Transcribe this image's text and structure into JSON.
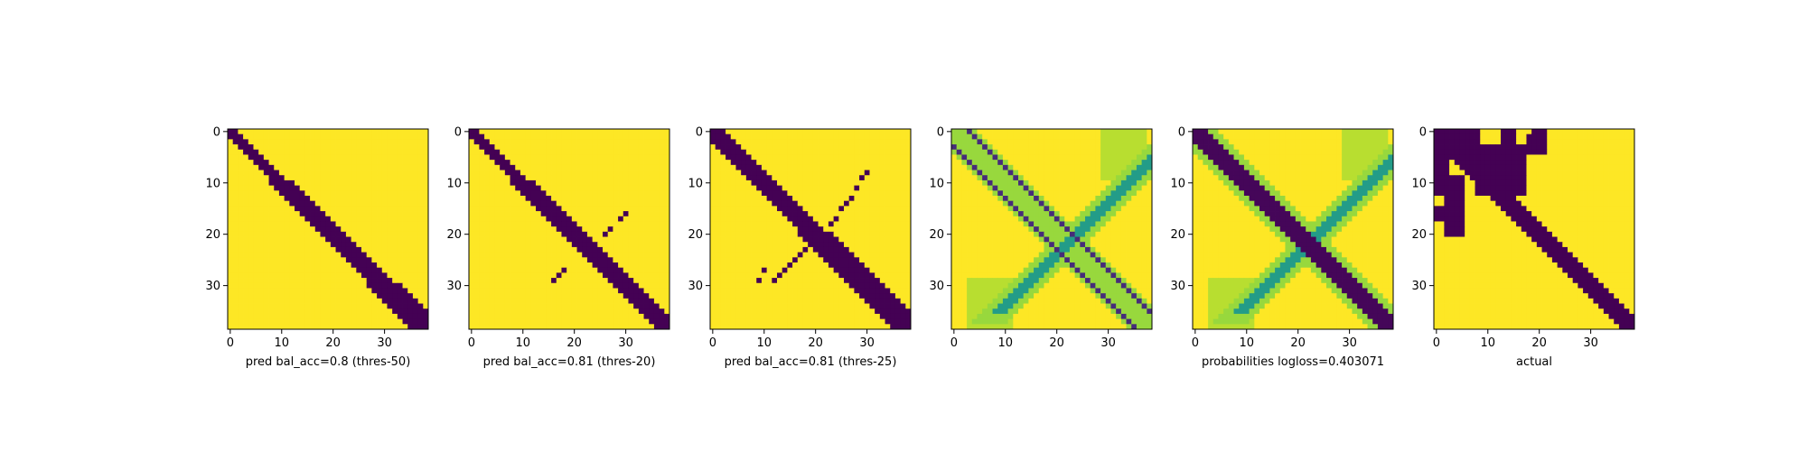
{
  "chart_data": [
    {
      "type": "heatmap",
      "title": "",
      "xlabel": "pred bal_acc=0.8 (thres-50)",
      "ylabel": "",
      "grid_size": 39,
      "xticks": [
        0,
        10,
        20,
        30
      ],
      "yticks": [
        0,
        10,
        20,
        30
      ],
      "colormap": "viridis-binary",
      "band_halfwidth": [
        1,
        2,
        2,
        3
      ],
      "off_diagonal_points": []
    },
    {
      "type": "heatmap",
      "title": "",
      "xlabel": "pred bal_acc=0.81 (thres-20)",
      "ylabel": "",
      "grid_size": 39,
      "xticks": [
        0,
        10,
        20,
        30
      ],
      "yticks": [
        0,
        10,
        20,
        30
      ],
      "colormap": "viridis-binary",
      "band_halfwidth": [
        1,
        2,
        2,
        2
      ],
      "off_diagonal_points": [
        [
          30,
          16
        ],
        [
          29,
          17
        ],
        [
          27,
          19
        ],
        [
          26,
          20
        ],
        [
          18,
          27
        ],
        [
          17,
          28
        ],
        [
          16,
          29
        ]
      ]
    },
    {
      "type": "heatmap",
      "title": "",
      "xlabel": "pred bal_acc=0.81 (thres-25)",
      "ylabel": "",
      "grid_size": 39,
      "xticks": [
        0,
        10,
        20,
        30
      ],
      "yticks": [
        0,
        10,
        20,
        30
      ],
      "colormap": "viridis-binary",
      "band_halfwidth": [
        2,
        2,
        3,
        3
      ],
      "off_diagonal_points": [
        [
          29,
          9
        ],
        [
          30,
          8
        ],
        [
          28,
          11
        ],
        [
          27,
          13
        ],
        [
          26,
          14
        ],
        [
          25,
          15
        ],
        [
          24,
          17
        ],
        [
          23,
          18
        ],
        [
          18,
          23
        ],
        [
          17,
          24
        ],
        [
          16,
          25
        ],
        [
          15,
          26
        ],
        [
          14,
          27
        ],
        [
          13,
          28
        ],
        [
          12,
          29
        ],
        [
          10,
          27
        ],
        [
          9,
          29
        ]
      ]
    },
    {
      "type": "heatmap",
      "title": "",
      "xlabel": "",
      "ylabel": "",
      "grid_size": 39,
      "xticks": [
        0,
        10,
        20,
        30
      ],
      "yticks": [
        0,
        10,
        20,
        30
      ],
      "colormap": "viridis",
      "diagonal_offsets": [
        -3,
        3
      ],
      "antidiagonal_strength": 0.45
    },
    {
      "type": "heatmap",
      "title": "",
      "xlabel": "probabilities logloss=0.403071",
      "ylabel": "",
      "grid_size": 39,
      "xticks": [
        0,
        10,
        20,
        30
      ],
      "yticks": [
        0,
        10,
        20,
        30
      ],
      "colormap": "viridis",
      "diagonal_offsets": [
        -2,
        -1,
        0,
        1,
        2
      ],
      "antidiagonal_strength": 0.45
    },
    {
      "type": "heatmap",
      "title": "",
      "xlabel": "actual",
      "ylabel": "",
      "grid_size": 39,
      "xticks": [
        0,
        10,
        20,
        30
      ],
      "yticks": [
        0,
        10,
        20,
        30
      ],
      "colormap": "viridis-binary",
      "band_halfwidth": [
        2,
        2,
        2,
        2
      ],
      "blobs": [
        [
          0,
          0,
          8,
          5
        ],
        [
          13,
          0,
          15,
          2
        ],
        [
          19,
          0,
          21,
          3
        ],
        [
          18,
          1,
          21,
          4
        ],
        [
          0,
          5,
          2,
          12
        ],
        [
          2,
          9,
          5,
          16
        ],
        [
          8,
          3,
          17,
          12
        ],
        [
          0,
          15,
          1,
          17
        ],
        [
          2,
          17,
          5,
          20
        ]
      ]
    }
  ]
}
